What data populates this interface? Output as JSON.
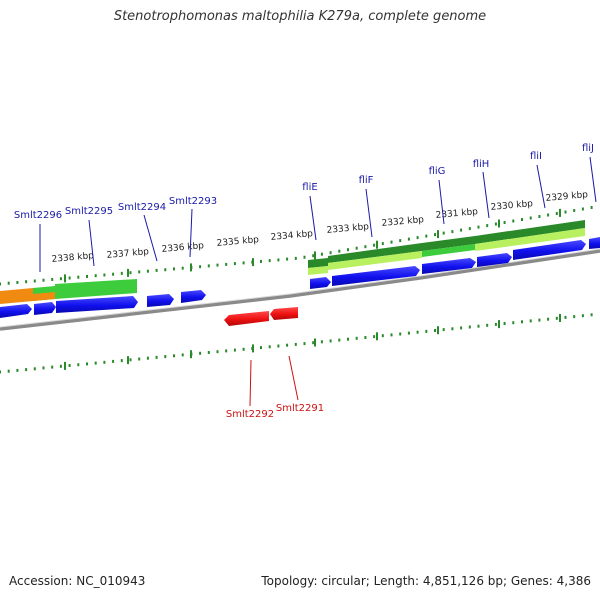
{
  "title": "Stenotrophomonas maltophilia K279a, complete genome",
  "footer": {
    "accession": "Accession: NC_010943",
    "summary": "Topology: circular; Length: 4,851,126 bp; Genes: 4,386"
  },
  "colors": {
    "forward_gene": "#1010ee",
    "reverse_gene": "#ee1111",
    "gene_label_forward": "#1a1aa8",
    "gene_label_reverse": "#cc1111",
    "backbone": "#8a8a8a",
    "tick": "#2a8a2a",
    "cog_dark": "#2a8a2a",
    "cog_mid": "#3ccc3c",
    "cog_light": "#b8f060",
    "cog_orange": "#f08a10"
  },
  "scale_labels": [
    {
      "label": "2338 kbp"
    },
    {
      "label": "2337 kbp"
    },
    {
      "label": "2336 kbp"
    },
    {
      "label": "2335 kbp"
    },
    {
      "label": "2334 kbp"
    },
    {
      "label": "2333 kbp"
    },
    {
      "label": "2332 kbp"
    },
    {
      "label": "2331 kbp"
    },
    {
      "label": "2330 kbp"
    },
    {
      "label": "2329 kbp"
    }
  ],
  "forward_gene_labels": [
    {
      "name": "Smlt2296"
    },
    {
      "name": "Smlt2295"
    },
    {
      "name": "Smlt2294"
    },
    {
      "name": "Smlt2293"
    },
    {
      "name": "fliE"
    },
    {
      "name": "fliF"
    },
    {
      "name": "fliG"
    },
    {
      "name": "fliH"
    },
    {
      "name": "fliI"
    },
    {
      "name": "fliJ"
    }
  ],
  "reverse_gene_labels": [
    {
      "name": "Smlt2292"
    },
    {
      "name": "Smlt2291"
    }
  ]
}
